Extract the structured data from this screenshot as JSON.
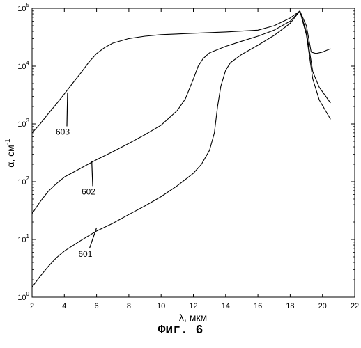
{
  "chart_data": {
    "type": "line",
    "xlabel": "λ, мкм",
    "ylabel_base": "α, см",
    "ylabel_exp": "-1",
    "xlim": [
      2,
      22
    ],
    "ylim": [
      1,
      100000
    ],
    "yscale": "log",
    "grid": false,
    "x_ticks": [
      2,
      4,
      6,
      8,
      10,
      12,
      14,
      16,
      18,
      20,
      22
    ],
    "y_ticks": [
      {
        "base": "10",
        "exp": "0",
        "value": 1
      },
      {
        "base": "10",
        "exp": "1",
        "value": 10
      },
      {
        "base": "10",
        "exp": "2",
        "value": 100
      },
      {
        "base": "10",
        "exp": "3",
        "value": 1000
      },
      {
        "base": "10",
        "exp": "4",
        "value": 10000
      },
      {
        "base": "10",
        "exp": "5",
        "value": 100000
      }
    ],
    "series": [
      {
        "name": "603",
        "label_at": [
          4.2,
          3500
        ],
        "text_at": [
          3.9,
          650
        ],
        "points": [
          [
            2,
            700
          ],
          [
            2.5,
            1000
          ],
          [
            3,
            1500
          ],
          [
            3.5,
            2200
          ],
          [
            4,
            3300
          ],
          [
            4.5,
            5000
          ],
          [
            5,
            7500
          ],
          [
            5.5,
            11500
          ],
          [
            6,
            16500
          ],
          [
            6.5,
            21000
          ],
          [
            7,
            25000
          ],
          [
            8,
            30000
          ],
          [
            9,
            33000
          ],
          [
            10,
            35000
          ],
          [
            12,
            37000
          ],
          [
            14,
            39000
          ],
          [
            16,
            42000
          ],
          [
            17,
            50000
          ],
          [
            18,
            68000
          ],
          [
            18.6,
            90000
          ],
          [
            19,
            50000
          ],
          [
            19.3,
            17500
          ],
          [
            19.6,
            16500
          ],
          [
            20,
            17500
          ],
          [
            20.5,
            20000
          ]
        ]
      },
      {
        "name": "602",
        "label_at": [
          5.7,
          230
        ],
        "text_at": [
          5.5,
          60
        ],
        "points": [
          [
            2,
            28
          ],
          [
            2.5,
            45
          ],
          [
            3,
            68
          ],
          [
            3.5,
            92
          ],
          [
            4,
            120
          ],
          [
            5,
            170
          ],
          [
            6,
            240
          ],
          [
            7,
            330
          ],
          [
            8,
            460
          ],
          [
            9,
            650
          ],
          [
            10,
            950
          ],
          [
            11,
            1700
          ],
          [
            11.5,
            2700
          ],
          [
            12,
            6000
          ],
          [
            12.3,
            10000
          ],
          [
            12.6,
            13500
          ],
          [
            13,
            17000
          ],
          [
            14,
            22000
          ],
          [
            15,
            27000
          ],
          [
            16,
            33000
          ],
          [
            17,
            42000
          ],
          [
            18,
            60000
          ],
          [
            18.6,
            90000
          ],
          [
            19,
            40000
          ],
          [
            19.4,
            8000
          ],
          [
            19.8,
            4300
          ],
          [
            20.5,
            2300
          ]
        ]
      },
      {
        "name": "601",
        "label_at": [
          6,
          16
        ],
        "text_at": [
          5.3,
          5
        ],
        "points": [
          [
            2,
            1.5
          ],
          [
            2.5,
            2.3
          ],
          [
            3,
            3.4
          ],
          [
            3.5,
            4.8
          ],
          [
            4,
            6.3
          ],
          [
            5,
            9.5
          ],
          [
            6,
            14
          ],
          [
            7,
            19
          ],
          [
            8,
            27
          ],
          [
            9,
            38
          ],
          [
            10,
            55
          ],
          [
            11,
            85
          ],
          [
            12,
            140
          ],
          [
            12.5,
            200
          ],
          [
            13,
            350
          ],
          [
            13.3,
            700
          ],
          [
            13.5,
            2000
          ],
          [
            13.7,
            4500
          ],
          [
            14,
            8500
          ],
          [
            14.3,
            11500
          ],
          [
            15,
            16000
          ],
          [
            16,
            23000
          ],
          [
            17,
            34000
          ],
          [
            18,
            55000
          ],
          [
            18.6,
            90000
          ],
          [
            19,
            35000
          ],
          [
            19.4,
            6000
          ],
          [
            19.8,
            2600
          ],
          [
            20.5,
            1200
          ]
        ]
      }
    ]
  },
  "caption": "Фиг. 6"
}
